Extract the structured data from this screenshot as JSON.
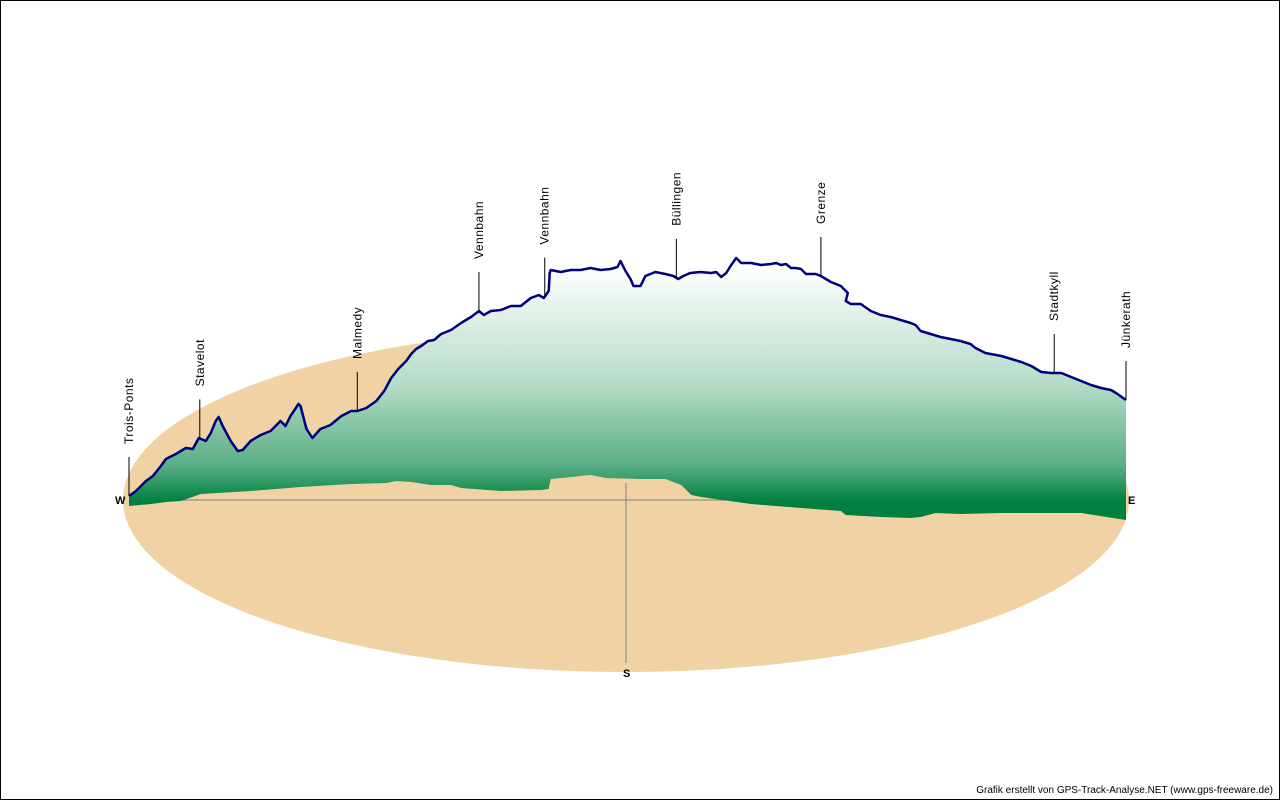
{
  "chart_data": {
    "type": "area",
    "title": "",
    "description_units": "x = percent of track length (West to East), y = relative elevation units above ground plane",
    "compass": {
      "west": "W",
      "east": "E",
      "south": "S"
    },
    "colors": {
      "ground": "#f0d2a4",
      "line": "#000080",
      "fill_low": "#008040",
      "fill_high": "#ffffff",
      "axis": "#808080"
    },
    "profile_top": [
      [
        0,
        4
      ],
      [
        0.7,
        9
      ],
      [
        1.7,
        19
      ],
      [
        2.4,
        24
      ],
      [
        3.2,
        34
      ],
      [
        3.7,
        41
      ],
      [
        4.7,
        46
      ],
      [
        5.7,
        52
      ],
      [
        6.4,
        51
      ],
      [
        7,
        62
      ],
      [
        7.7,
        59
      ],
      [
        8.2,
        67
      ],
      [
        8.7,
        79
      ],
      [
        9,
        83
      ],
      [
        9.4,
        74
      ],
      [
        10.2,
        59
      ],
      [
        10.9,
        49
      ],
      [
        11.4,
        50
      ],
      [
        12.2,
        59
      ],
      [
        13.2,
        65
      ],
      [
        14.2,
        69
      ],
      [
        14.7,
        74
      ],
      [
        15.2,
        79
      ],
      [
        15.7,
        74
      ],
      [
        16.2,
        84
      ],
      [
        17,
        96
      ],
      [
        17.2,
        94
      ],
      [
        17.8,
        71
      ],
      [
        18.4,
        62
      ],
      [
        19.2,
        71
      ],
      [
        20.2,
        75
      ],
      [
        21.3,
        84
      ],
      [
        22.3,
        89
      ],
      [
        22.9,
        89
      ],
      [
        23.8,
        92
      ],
      [
        24.8,
        99
      ],
      [
        25.6,
        109
      ],
      [
        26.3,
        122
      ],
      [
        27,
        131
      ],
      [
        27.8,
        139
      ],
      [
        28.3,
        146
      ],
      [
        28.8,
        151
      ],
      [
        29.3,
        154
      ],
      [
        30,
        159
      ],
      [
        30.6,
        160
      ],
      [
        31.3,
        166
      ],
      [
        32.3,
        170
      ],
      [
        33.3,
        177
      ],
      [
        34.3,
        183
      ],
      [
        35.1,
        189
      ],
      [
        35.6,
        185
      ],
      [
        36.3,
        189
      ],
      [
        37.3,
        190
      ],
      [
        38.3,
        194
      ],
      [
        39.3,
        194
      ],
      [
        40.3,
        202
      ],
      [
        41.1,
        205
      ],
      [
        41.6,
        202
      ],
      [
        42.1,
        209
      ],
      [
        42.2,
        227
      ],
      [
        42.3,
        230
      ],
      [
        43.3,
        228
      ],
      [
        44.3,
        230
      ],
      [
        45.3,
        230
      ],
      [
        46.3,
        232
      ],
      [
        47.3,
        230
      ],
      [
        48.3,
        231
      ],
      [
        49,
        233
      ],
      [
        49.3,
        239
      ],
      [
        49.8,
        229
      ],
      [
        50.3,
        221
      ],
      [
        50.6,
        214
      ],
      [
        51.3,
        214
      ],
      [
        51.8,
        224
      ],
      [
        52.8,
        228
      ],
      [
        53.8,
        226
      ],
      [
        54.6,
        224
      ],
      [
        55.1,
        221
      ],
      [
        55.6,
        224
      ],
      [
        56.3,
        227
      ],
      [
        57.3,
        228
      ],
      [
        58.4,
        227
      ],
      [
        58.9,
        228
      ],
      [
        59.4,
        223
      ],
      [
        59.9,
        227
      ],
      [
        60.4,
        235
      ],
      [
        60.9,
        242
      ],
      [
        61.4,
        237
      ],
      [
        62.4,
        237
      ],
      [
        63.4,
        235
      ],
      [
        64.4,
        236
      ],
      [
        64.9,
        237
      ],
      [
        65.4,
        235
      ],
      [
        65.9,
        236
      ],
      [
        66.4,
        232
      ],
      [
        66.9,
        232
      ],
      [
        67.4,
        231
      ],
      [
        67.9,
        226
      ],
      [
        68.9,
        226
      ],
      [
        69.4,
        224
      ],
      [
        70.4,
        218
      ],
      [
        71.4,
        214
      ],
      [
        72.1,
        207
      ],
      [
        71.9,
        199
      ],
      [
        72.4,
        196
      ],
      [
        73.4,
        196
      ],
      [
        74.4,
        189
      ],
      [
        75.4,
        185
      ],
      [
        76.4,
        183
      ],
      [
        77.4,
        180
      ],
      [
        78.4,
        177
      ],
      [
        78.9,
        175
      ],
      [
        79.4,
        169
      ],
      [
        80.4,
        166
      ],
      [
        81.4,
        163
      ],
      [
        82.4,
        161
      ],
      [
        83.4,
        159
      ],
      [
        84.4,
        156
      ],
      [
        84.9,
        152
      ],
      [
        85.9,
        147
      ],
      [
        87.5,
        144
      ],
      [
        88.5,
        141
      ],
      [
        89.5,
        138
      ],
      [
        90.5,
        134
      ],
      [
        91.5,
        128
      ],
      [
        92.5,
        127
      ],
      [
        93.5,
        127
      ],
      [
        94.5,
        123
      ],
      [
        95.5,
        119
      ],
      [
        96.5,
        115
      ],
      [
        97.5,
        112
      ],
      [
        98.5,
        110
      ],
      [
        99,
        107
      ],
      [
        100,
        100
      ]
    ],
    "profile_base": [
      [
        0,
        -6
      ],
      [
        2.2,
        -4
      ],
      [
        3.7,
        -2
      ],
      [
        5.2,
        -1
      ],
      [
        7.2,
        6
      ],
      [
        12.2,
        9
      ],
      [
        17.2,
        13
      ],
      [
        22.3,
        16
      ],
      [
        25.8,
        17
      ],
      [
        26.8,
        19
      ],
      [
        28.3,
        18
      ],
      [
        30.3,
        15
      ],
      [
        32.3,
        15
      ],
      [
        33.3,
        12
      ],
      [
        37.3,
        9
      ],
      [
        41.3,
        10
      ],
      [
        42.1,
        11
      ],
      [
        42.3,
        21
      ],
      [
        44.3,
        23
      ],
      [
        46.3,
        25
      ],
      [
        47.8,
        22
      ],
      [
        51.3,
        21
      ],
      [
        53.8,
        21
      ],
      [
        55.4,
        15
      ],
      [
        56.4,
        5
      ],
      [
        57.4,
        3
      ],
      [
        62.4,
        -4
      ],
      [
        67.4,
        -8
      ],
      [
        71.4,
        -11
      ],
      [
        71.9,
        -15
      ],
      [
        75.4,
        -17
      ],
      [
        78.4,
        -18
      ],
      [
        79.4,
        -17
      ],
      [
        80.9,
        -13
      ],
      [
        83.4,
        -14
      ],
      [
        87.5,
        -13
      ],
      [
        91.5,
        -13
      ],
      [
        95.5,
        -13
      ],
      [
        100,
        -20
      ]
    ],
    "markers": [
      {
        "name": "Trois-Ponts",
        "at": 0
      },
      {
        "name": "Stavelot",
        "at": 7.1
      },
      {
        "name": "Malmedy",
        "at": 22.9
      },
      {
        "name": "Vennbahn",
        "at": 35.1
      },
      {
        "name": "Vennbahn",
        "at": 41.7
      },
      {
        "name": "Büllingen",
        "at": 54.9
      },
      {
        "name": "Grenze",
        "at": 69.4
      },
      {
        "name": "Stadtkyll",
        "at": 92.8
      },
      {
        "name": "Jünkerath",
        "at": 100
      }
    ]
  },
  "footer": {
    "credit": "Grafik erstellt von GPS-Track-Analyse.NET (www.gps-freeware.de)"
  }
}
